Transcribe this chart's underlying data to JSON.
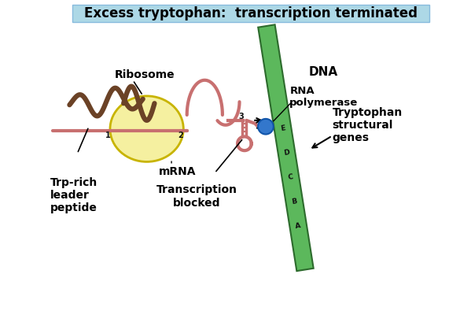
{
  "title": "Excess tryptophan:  transcription terminated",
  "title_bg": "#add8e6",
  "title_fontsize": 12,
  "bg_color": "#ffffff",
  "dna_color": "#5cb85c",
  "dna_border_color": "#2d6b2d",
  "mrna_color": "#c87070",
  "ribosome_color": "#f5f0a0",
  "ribosome_outline": "#c8b400",
  "trp_peptide_color": "#6b4226",
  "rna_pol_color": "#3377cc",
  "labels": {
    "dna": "DNA",
    "ribosome": "Ribosome",
    "mrna": "mRNA",
    "trp_peptide": "Trp-rich\nleader\npeptide",
    "rna_pol": "RNA\npolymerase",
    "trp_genes": "Tryptophan\nstructural\ngenes",
    "transcription_blocked": "Transcription\nblocked"
  },
  "gene_labels": [
    "E",
    "D",
    "C",
    "B",
    "A"
  ],
  "numbers": [
    "1",
    "2",
    "3"
  ]
}
